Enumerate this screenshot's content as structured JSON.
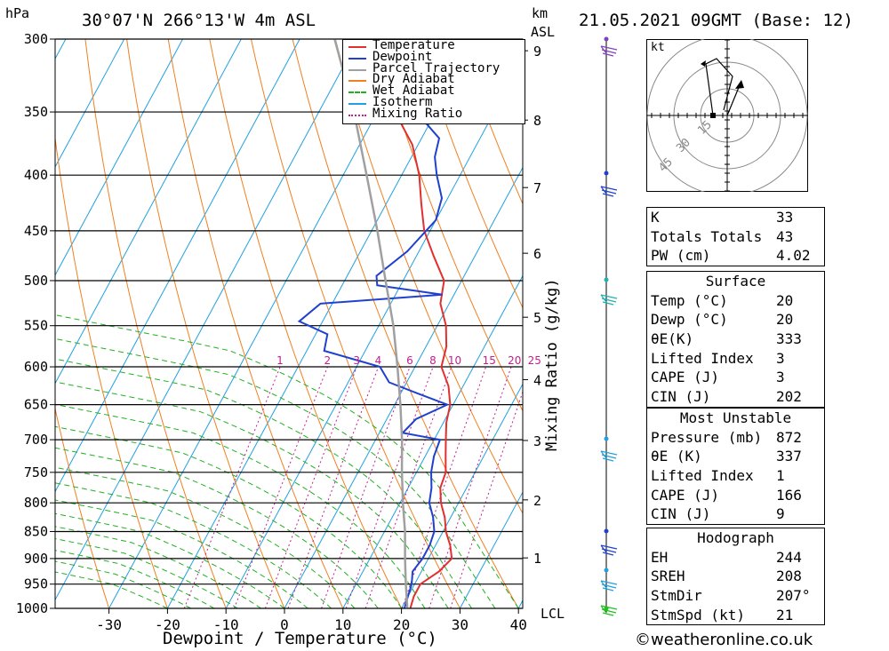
{
  "header": {
    "hpa_unit": "hPa",
    "location": "30°07'N 266°13'W 4m ASL",
    "km_unit": "km",
    "asl_unit": "ASL",
    "datetime": "21.05.2021 09GMT (Base: 12)"
  },
  "legend": [
    {
      "label": "Temperature",
      "color": "#e03030"
    },
    {
      "label": "Dewpoint",
      "color": "#2040d0"
    },
    {
      "label": "Parcel Trajectory",
      "color": "#a0a0a0"
    },
    {
      "label": "Dry Adiabat",
      "color": "#f08020"
    },
    {
      "label": "Wet Adiabat",
      "color": "#20b020"
    },
    {
      "label": "Isotherm",
      "color": "#20a0e0"
    },
    {
      "label": "Mixing Ratio",
      "color": "#c02090"
    }
  ],
  "chart_data": {
    "type": "line",
    "subtype": "skew-t log-p diagram",
    "xlabel": "Dewpoint / Temperature (°C)",
    "ylabel_left": "hPa",
    "ylabel_right": "Mixing Ratio (g/kg)",
    "x_ticks": [
      -30,
      -20,
      -10,
      0,
      10,
      20,
      30,
      40
    ],
    "pressure_levels": [
      300,
      350,
      400,
      450,
      500,
      550,
      600,
      650,
      700,
      750,
      800,
      850,
      900,
      950,
      1000
    ],
    "height_km_ticks": [
      1,
      2,
      3,
      4,
      5,
      6,
      7,
      8,
      9
    ],
    "lcl_label": "LCL",
    "mixing_ratio_labels": [
      "1",
      "2",
      "3",
      "4",
      "6",
      "8",
      "10",
      "15",
      "20",
      "25"
    ],
    "series": [
      {
        "name": "Temperature",
        "color": "#e03030",
        "points": [
          [
            1000,
            21.5
          ],
          [
            975,
            21
          ],
          [
            950,
            21
          ],
          [
            925,
            23
          ],
          [
            900,
            24
          ],
          [
            875,
            22.5
          ],
          [
            850,
            20.5
          ],
          [
            825,
            19
          ],
          [
            800,
            17
          ],
          [
            775,
            15.5
          ],
          [
            750,
            15
          ],
          [
            725,
            13.5
          ],
          [
            700,
            12
          ],
          [
            675,
            10.5
          ],
          [
            650,
            9.5
          ],
          [
            625,
            7.5
          ],
          [
            600,
            4.5
          ],
          [
            575,
            3.5
          ],
          [
            550,
            1.5
          ],
          [
            525,
            -1.5
          ],
          [
            500,
            -3
          ],
          [
            475,
            -7
          ],
          [
            450,
            -11
          ],
          [
            425,
            -14
          ],
          [
            400,
            -17
          ],
          [
            375,
            -21
          ],
          [
            350,
            -27
          ],
          [
            325,
            -32
          ],
          [
            300,
            -38
          ]
        ]
      },
      {
        "name": "Dewpoint",
        "color": "#2040d0",
        "points": [
          [
            1000,
            20.5
          ],
          [
            975,
            20
          ],
          [
            950,
            19.5
          ],
          [
            925,
            18.5
          ],
          [
            900,
            19
          ],
          [
            875,
            19
          ],
          [
            850,
            18.5
          ],
          [
            825,
            17
          ],
          [
            800,
            15
          ],
          [
            775,
            14
          ],
          [
            750,
            12.5
          ],
          [
            725,
            11.5
          ],
          [
            700,
            11
          ],
          [
            690,
            4
          ],
          [
            670,
            5
          ],
          [
            650,
            9
          ],
          [
            635,
            3
          ],
          [
            620,
            -3
          ],
          [
            600,
            -6
          ],
          [
            580,
            -17
          ],
          [
            560,
            -18
          ],
          [
            545,
            -24
          ],
          [
            525,
            -22
          ],
          [
            515,
            -2
          ],
          [
            505,
            -14
          ],
          [
            495,
            -15
          ],
          [
            470,
            -12
          ],
          [
            440,
            -10
          ],
          [
            420,
            -11
          ],
          [
            400,
            -14
          ],
          [
            385,
            -16
          ],
          [
            370,
            -17
          ],
          [
            345,
            -25
          ],
          [
            330,
            -26
          ],
          [
            300,
            -33
          ]
        ]
      },
      {
        "name": "Parcel Trajectory",
        "color": "#a0a0a0",
        "points": [
          [
            1000,
            21
          ],
          [
            950,
            18.5
          ],
          [
            900,
            16
          ],
          [
            850,
            13.5
          ],
          [
            800,
            10.5
          ],
          [
            750,
            7.5
          ],
          [
            700,
            4.5
          ],
          [
            650,
            1
          ],
          [
            600,
            -3
          ],
          [
            550,
            -7.5
          ],
          [
            500,
            -13
          ],
          [
            450,
            -19
          ],
          [
            400,
            -26
          ],
          [
            350,
            -34
          ],
          [
            300,
            -44
          ]
        ]
      }
    ]
  },
  "hodograph": {
    "unit": "kt",
    "rings": [
      "15",
      "30",
      "45"
    ]
  },
  "indices_table": {
    "rows": [
      {
        "k": "K",
        "v": "33"
      },
      {
        "k": "Totals Totals",
        "v": "43"
      },
      {
        "k": "PW (cm)",
        "v": "4.02"
      }
    ]
  },
  "surface_table": {
    "title": "Surface",
    "rows": [
      {
        "k": "Temp (°C)",
        "v": "20"
      },
      {
        "k": "Dewp (°C)",
        "v": "20"
      },
      {
        "k": "θE(K)",
        "v": "333"
      },
      {
        "k": "Lifted Index",
        "v": "3"
      },
      {
        "k": "CAPE (J)",
        "v": "3"
      },
      {
        "k": "CIN (J)",
        "v": "202"
      }
    ]
  },
  "unstable_table": {
    "title": "Most Unstable",
    "rows": [
      {
        "k": "Pressure (mb)",
        "v": "872"
      },
      {
        "k": "θE (K)",
        "v": "337"
      },
      {
        "k": "Lifted Index",
        "v": "1"
      },
      {
        "k": "CAPE (J)",
        "v": "166"
      },
      {
        "k": "CIN (J)",
        "v": "9"
      }
    ]
  },
  "hodo_table": {
    "title": "Hodograph",
    "rows": [
      {
        "k": "EH",
        "v": "244"
      },
      {
        "k": "SREH",
        "v": "208"
      },
      {
        "k": "StmDir",
        "v": "207°"
      },
      {
        "k": "StmSpd (kt)",
        "v": "21"
      }
    ]
  },
  "footer": {
    "copyright_symbol": "©",
    "site": "weatheronline.co.uk"
  }
}
